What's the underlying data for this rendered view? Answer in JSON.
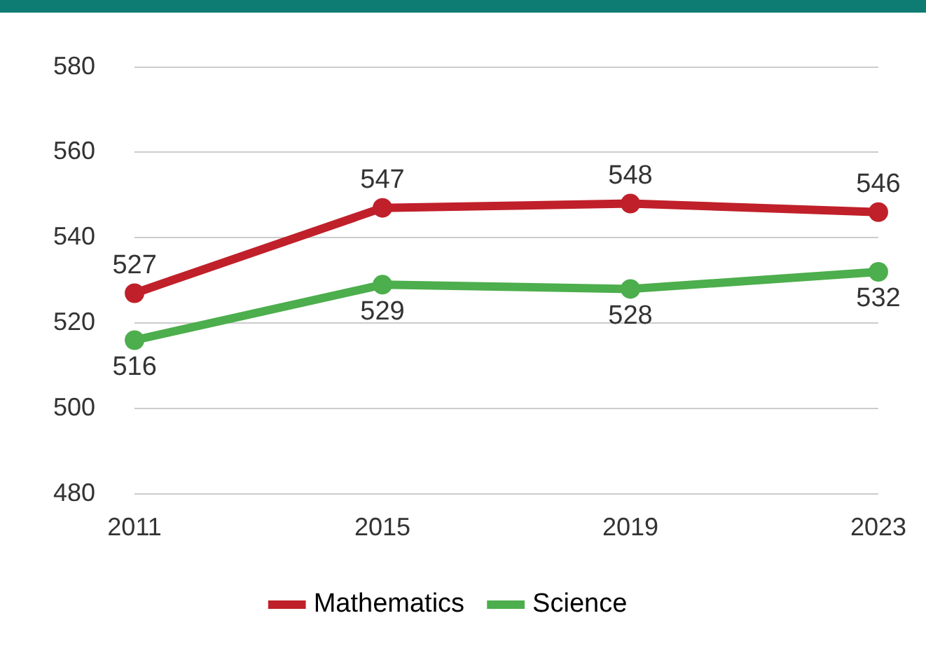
{
  "chart_data": {
    "type": "line",
    "categories": [
      "2011",
      "2015",
      "2019",
      "2023"
    ],
    "series": [
      {
        "name": "Mathematics",
        "color": "#c0202a",
        "values": [
          527,
          547,
          548,
          546
        ]
      },
      {
        "name": "Science",
        "color": "#4cae4c",
        "values": [
          516,
          529,
          528,
          532
        ]
      }
    ],
    "ylim": [
      480,
      580
    ],
    "yticks": [
      480,
      500,
      520,
      540,
      560,
      580
    ],
    "grid": "y",
    "legend": "bottom",
    "marker": "circle",
    "line_style": "solid",
    "data_labels": true
  }
}
